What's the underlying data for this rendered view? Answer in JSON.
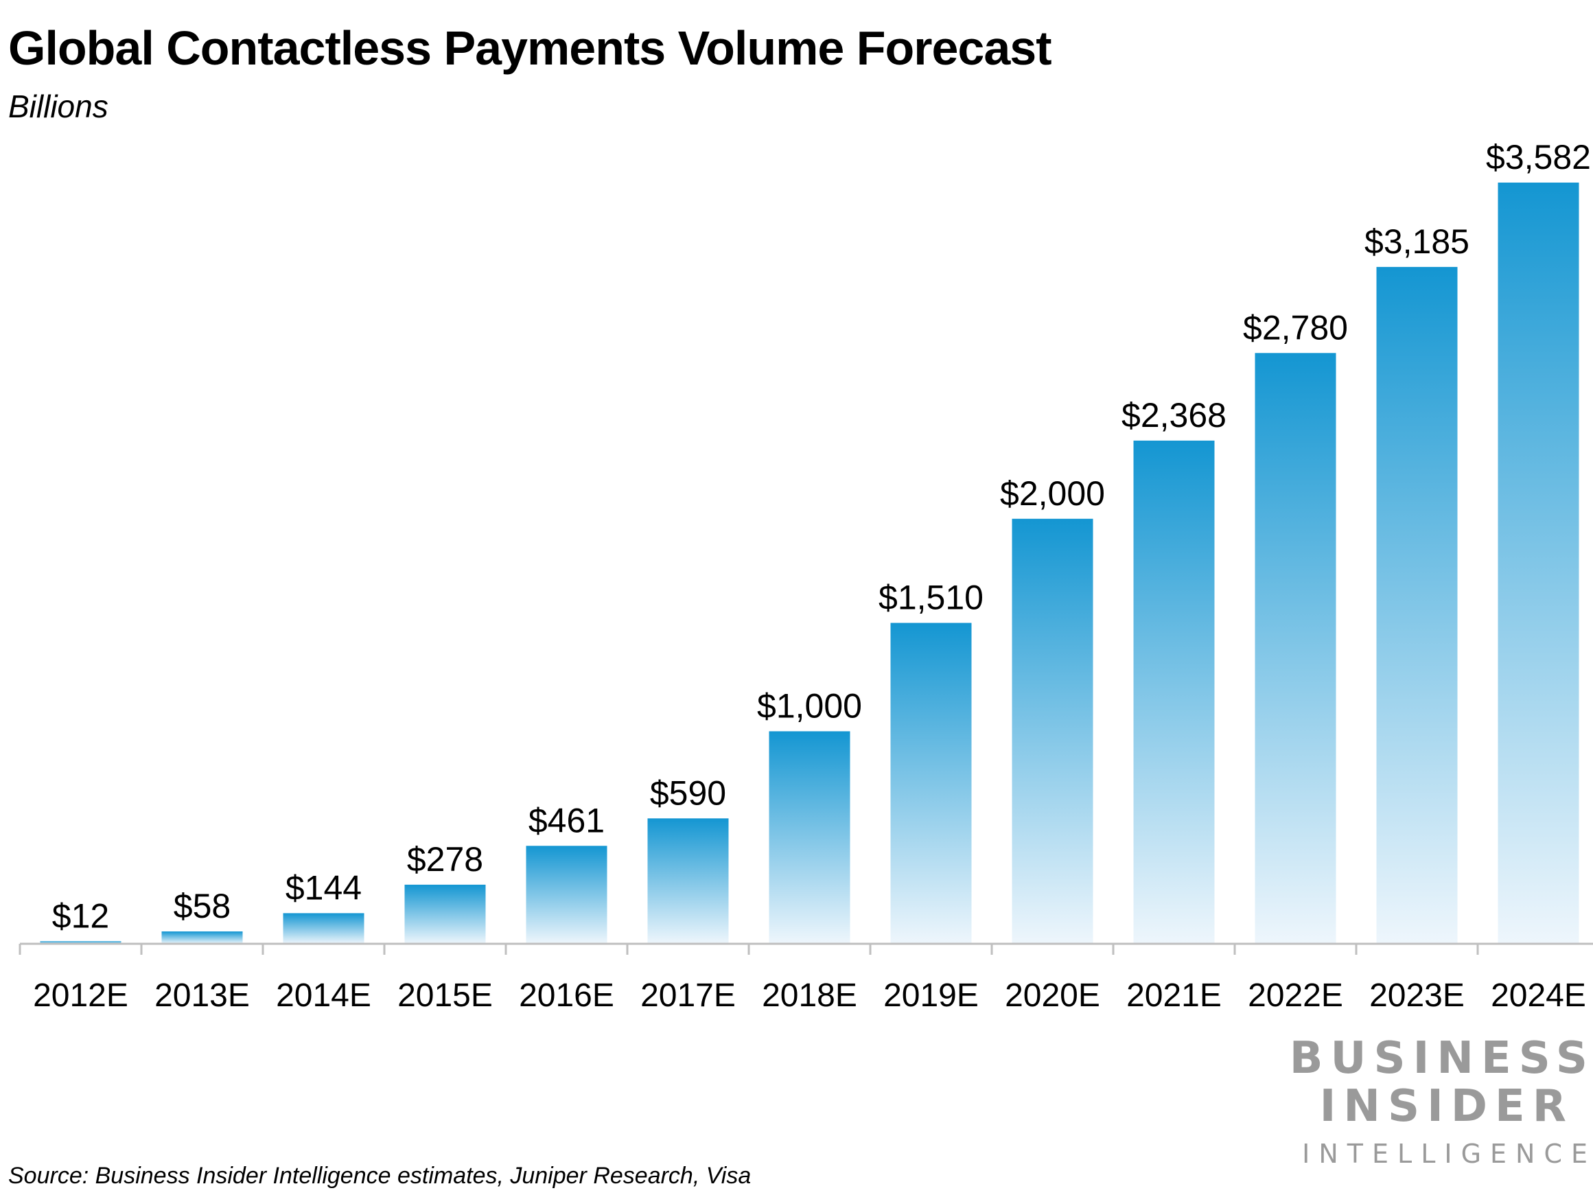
{
  "chart_data": {
    "type": "bar",
    "title": "Global Contactless Payments Volume Forecast",
    "subtitle": "Billions",
    "xlabel": "",
    "ylabel": "",
    "categories": [
      "2012E",
      "2013E",
      "2014E",
      "2015E",
      "2016E",
      "2017E",
      "2018E",
      "2019E",
      "2020E",
      "2021E",
      "2022E",
      "2023E",
      "2024E"
    ],
    "values": [
      12,
      58,
      144,
      278,
      461,
      590,
      1000,
      1510,
      2000,
      2368,
      2780,
      3185,
      3582
    ],
    "value_labels": [
      "$12",
      "$58",
      "$144",
      "$278",
      "$461",
      "$590",
      "$1,000",
      "$1,510",
      "$2,000",
      "$2,368",
      "$2,780",
      "$3,185",
      "$3,582"
    ],
    "ylim": [
      0,
      3582
    ],
    "grid": false,
    "legend": "none",
    "colors": {
      "bar_top": "#1496d2",
      "bar_bottom": "#eef6fc",
      "axis": "#bfbfbf"
    },
    "source": "Source: Business Insider Intelligence estimates, Juniper Research, Visa"
  },
  "brand": {
    "line1": "BUSINESS",
    "line2": "INSIDER",
    "line3": "INTELLIGENCE"
  }
}
